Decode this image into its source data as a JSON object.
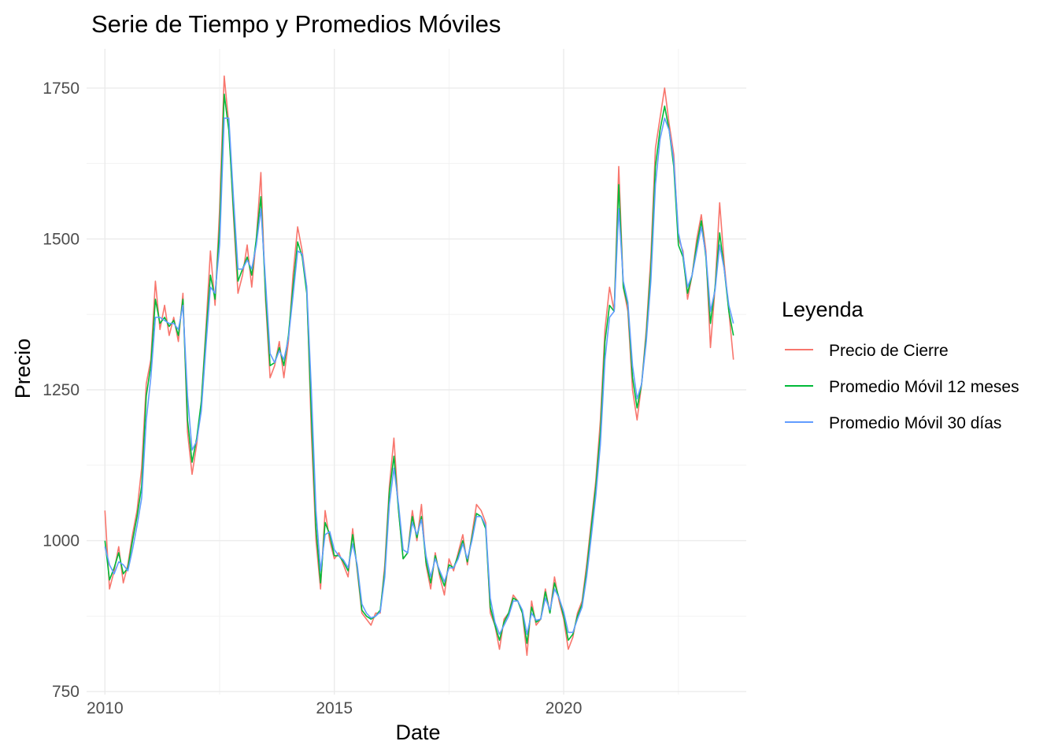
{
  "chart_data": {
    "type": "line",
    "title": "Serie de Tiempo y Promedios Móviles",
    "xlabel": "Date",
    "ylabel": "Precio",
    "xlim": [
      2009.6,
      2023.98
    ],
    "ylim": [
      745,
      1815
    ],
    "x_ticks": [
      2010,
      2015,
      2020
    ],
    "x_minor_ticks": [
      2012.5,
      2017.5,
      2022.5
    ],
    "y_ticks": [
      750,
      1000,
      1250,
      1500,
      1750
    ],
    "y_minor_ticks": [
      875,
      1125,
      1375,
      1625
    ],
    "grid": true,
    "legend": {
      "title": "Leyenda",
      "position": "right",
      "entries": [
        {
          "label": "Precio de Cierre",
          "color": "#F8766D"
        },
        {
          "label": "Promedio Móvil 12 meses",
          "color": "#00BA38"
        },
        {
          "label": "Promedio Móvil 30 días",
          "color": "#619CFF"
        }
      ]
    },
    "x": [
      2010.0,
      2010.1,
      2010.2,
      2010.3,
      2010.4,
      2010.5,
      2010.6,
      2010.7,
      2010.8,
      2010.9,
      2011.0,
      2011.1,
      2011.2,
      2011.3,
      2011.4,
      2011.5,
      2011.6,
      2011.7,
      2011.8,
      2011.9,
      2012.0,
      2012.1,
      2012.2,
      2012.3,
      2012.4,
      2012.5,
      2012.6,
      2012.7,
      2012.8,
      2012.9,
      2013.0,
      2013.1,
      2013.2,
      2013.3,
      2013.4,
      2013.5,
      2013.6,
      2013.7,
      2013.8,
      2013.9,
      2014.0,
      2014.1,
      2014.2,
      2014.3,
      2014.4,
      2014.5,
      2014.6,
      2014.7,
      2014.8,
      2014.9,
      2015.0,
      2015.1,
      2015.2,
      2015.3,
      2015.4,
      2015.5,
      2015.6,
      2015.7,
      2015.8,
      2015.9,
      2016.0,
      2016.1,
      2016.2,
      2016.3,
      2016.4,
      2016.5,
      2016.6,
      2016.7,
      2016.8,
      2016.9,
      2017.0,
      2017.1,
      2017.2,
      2017.3,
      2017.4,
      2017.5,
      2017.6,
      2017.7,
      2017.8,
      2017.9,
      2018.0,
      2018.1,
      2018.2,
      2018.3,
      2018.4,
      2018.5,
      2018.6,
      2018.7,
      2018.8,
      2018.9,
      2019.0,
      2019.1,
      2019.2,
      2019.3,
      2019.4,
      2019.5,
      2019.6,
      2019.7,
      2019.8,
      2019.9,
      2020.0,
      2020.1,
      2020.2,
      2020.3,
      2020.4,
      2020.5,
      2020.6,
      2020.7,
      2020.8,
      2020.9,
      2021.0,
      2021.1,
      2021.2,
      2021.3,
      2021.4,
      2021.5,
      2021.6,
      2021.7,
      2021.8,
      2021.9,
      2022.0,
      2022.1,
      2022.2,
      2022.3,
      2022.4,
      2022.5,
      2022.6,
      2022.7,
      2022.8,
      2022.9,
      2023.0,
      2023.1,
      2023.2,
      2023.3,
      2023.4,
      2023.5,
      2023.6,
      2023.7
    ],
    "series": [
      {
        "name": "Precio de Cierre",
        "color": "#F8766D",
        "values": [
          1050,
          920,
          950,
          990,
          930,
          960,
          1010,
          1050,
          1120,
          1260,
          1300,
          1430,
          1350,
          1390,
          1340,
          1370,
          1330,
          1410,
          1180,
          1110,
          1160,
          1230,
          1350,
          1480,
          1390,
          1550,
          1770,
          1690,
          1540,
          1410,
          1440,
          1490,
          1420,
          1500,
          1610,
          1400,
          1270,
          1290,
          1330,
          1270,
          1330,
          1440,
          1520,
          1480,
          1420,
          1180,
          1000,
          920,
          1050,
          1000,
          970,
          980,
          960,
          940,
          1020,
          950,
          880,
          870,
          860,
          880,
          880,
          960,
          1090,
          1170,
          1050,
          970,
          980,
          1050,
          1000,
          1060,
          960,
          920,
          980,
          940,
          910,
          970,
          950,
          980,
          1010,
          960,
          1010,
          1060,
          1050,
          1030,
          880,
          860,
          820,
          870,
          880,
          910,
          900,
          880,
          810,
          900,
          860,
          870,
          920,
          880,
          940,
          900,
          870,
          820,
          840,
          880,
          900,
          960,
          1030,
          1100,
          1200,
          1350,
          1420,
          1380,
          1620,
          1420,
          1380,
          1250,
          1200,
          1260,
          1350,
          1470,
          1650,
          1700,
          1750,
          1690,
          1640,
          1500,
          1480,
          1400,
          1440,
          1500,
          1540,
          1480,
          1320,
          1420,
          1560,
          1460,
          1380,
          1300
        ]
      },
      {
        "name": "Promedio Móvil 12 meses",
        "color": "#00BA38",
        "values": [
          1000,
          935,
          955,
          980,
          945,
          955,
          1000,
          1040,
          1090,
          1240,
          1290,
          1400,
          1360,
          1370,
          1355,
          1365,
          1340,
          1400,
          1200,
          1130,
          1170,
          1230,
          1340,
          1440,
          1400,
          1520,
          1740,
          1680,
          1550,
          1430,
          1450,
          1470,
          1440,
          1500,
          1570,
          1410,
          1290,
          1295,
          1320,
          1290,
          1340,
          1420,
          1495,
          1470,
          1410,
          1210,
          1020,
          930,
          1030,
          1010,
          975,
          975,
          965,
          950,
          1010,
          955,
          885,
          875,
          870,
          875,
          885,
          950,
          1080,
          1140,
          1050,
          970,
          980,
          1040,
          1005,
          1040,
          965,
          930,
          975,
          945,
          925,
          960,
          955,
          975,
          1000,
          965,
          1005,
          1045,
          1040,
          1020,
          890,
          860,
          835,
          865,
          880,
          905,
          900,
          880,
          830,
          890,
          865,
          870,
          915,
          880,
          930,
          905,
          875,
          835,
          845,
          875,
          895,
          950,
          1020,
          1090,
          1180,
          1330,
          1390,
          1380,
          1590,
          1420,
          1390,
          1270,
          1220,
          1260,
          1340,
          1450,
          1620,
          1680,
          1720,
          1680,
          1620,
          1490,
          1470,
          1410,
          1440,
          1490,
          1530,
          1470,
          1360,
          1420,
          1510,
          1450,
          1380,
          1340
        ]
      },
      {
        "name": "Promedio Móvil 30 días",
        "color": "#619CFF",
        "values": [
          990,
          960,
          945,
          965,
          960,
          950,
          985,
          1025,
          1070,
          1200,
          1270,
          1370,
          1370,
          1365,
          1360,
          1360,
          1350,
          1390,
          1240,
          1150,
          1165,
          1215,
          1320,
          1420,
          1410,
          1490,
          1700,
          1700,
          1570,
          1450,
          1450,
          1465,
          1450,
          1490,
          1550,
          1430,
          1310,
          1295,
          1315,
          1300,
          1335,
          1405,
          1480,
          1475,
          1420,
          1250,
          1050,
          950,
          1010,
          1015,
          985,
          975,
          968,
          955,
          995,
          960,
          895,
          880,
          872,
          875,
          882,
          940,
          1060,
          1120,
          1060,
          985,
          980,
          1030,
          1010,
          1035,
          975,
          940,
          970,
          950,
          932,
          955,
          955,
          970,
          995,
          970,
          1000,
          1040,
          1040,
          1025,
          905,
          865,
          845,
          860,
          875,
          900,
          900,
          885,
          845,
          880,
          868,
          870,
          905,
          885,
          920,
          905,
          882,
          848,
          848,
          870,
          890,
          940,
          1005,
          1075,
          1160,
          1300,
          1370,
          1380,
          1550,
          1430,
          1395,
          1290,
          1235,
          1260,
          1330,
          1430,
          1590,
          1665,
          1700,
          1680,
          1630,
          1510,
          1475,
          1420,
          1440,
          1480,
          1520,
          1475,
          1380,
          1415,
          1490,
          1450,
          1390,
          1360
        ]
      }
    ]
  }
}
